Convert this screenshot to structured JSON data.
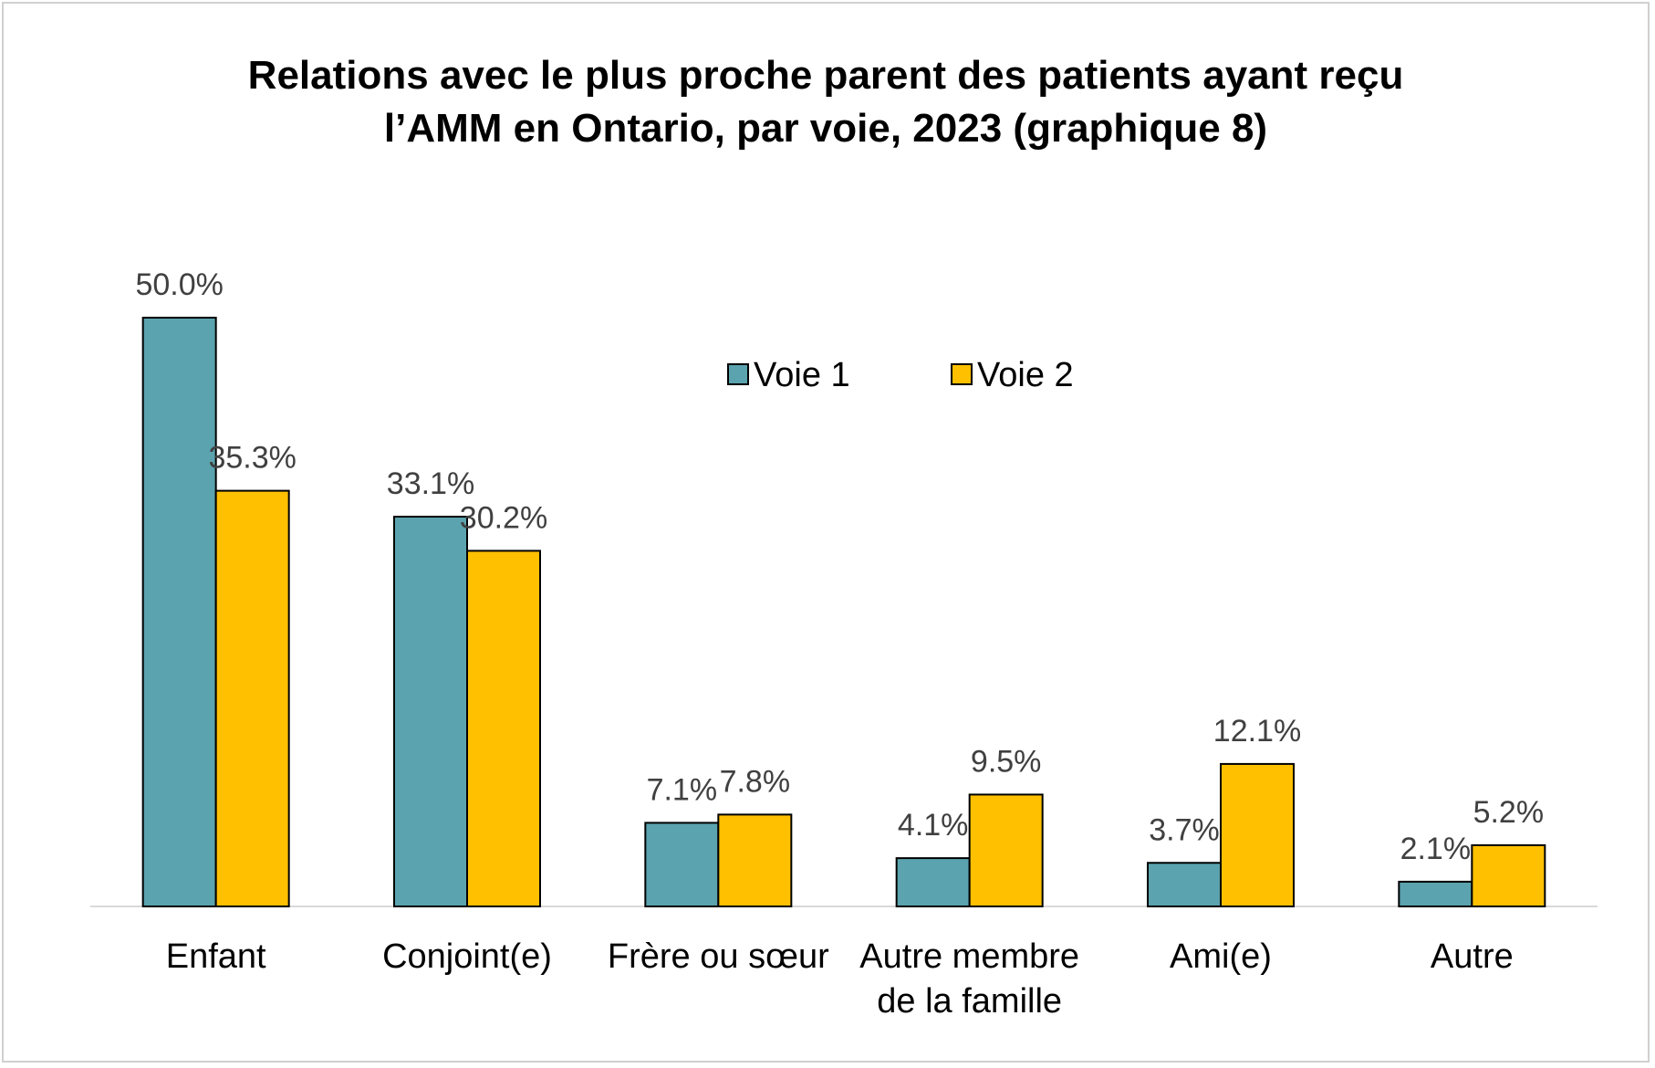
{
  "chart_data": {
    "type": "bar",
    "title": "Relations avec le plus proche parent des patients ayant reçu l’AMM en Ontario, par voie, 2023 (graphique 8)",
    "categories": [
      "Enfant",
      "Conjoint(e)",
      "Frère ou sœur",
      "Autre membre de la famille",
      "Ami(e)",
      "Autre"
    ],
    "category_lines": [
      [
        "Enfant"
      ],
      [
        "Conjoint(e)"
      ],
      [
        "Frère ou sœur"
      ],
      [
        "Autre membre",
        "de la famille"
      ],
      [
        "Ami(e)"
      ],
      [
        "Autre"
      ]
    ],
    "series": [
      {
        "name": "Voie 1",
        "color": "#5ba3ae",
        "values": [
          50.0,
          33.1,
          7.1,
          4.1,
          3.7,
          2.1
        ],
        "labels": [
          "50.0%",
          "33.1%",
          "7.1%",
          "4.1%",
          "3.7%",
          "2.1%"
        ]
      },
      {
        "name": "Voie 2",
        "color": "#ffc000",
        "values": [
          35.3,
          30.2,
          7.8,
          9.5,
          12.1,
          5.2
        ],
        "labels": [
          "35.3%",
          "30.2%",
          "7.8%",
          "9.5%",
          "12.1%",
          "5.2%"
        ]
      }
    ],
    "ylim": [
      0,
      50
    ],
    "grid": false,
    "legend_position": "top-center",
    "xlabel": "",
    "ylabel": ""
  }
}
